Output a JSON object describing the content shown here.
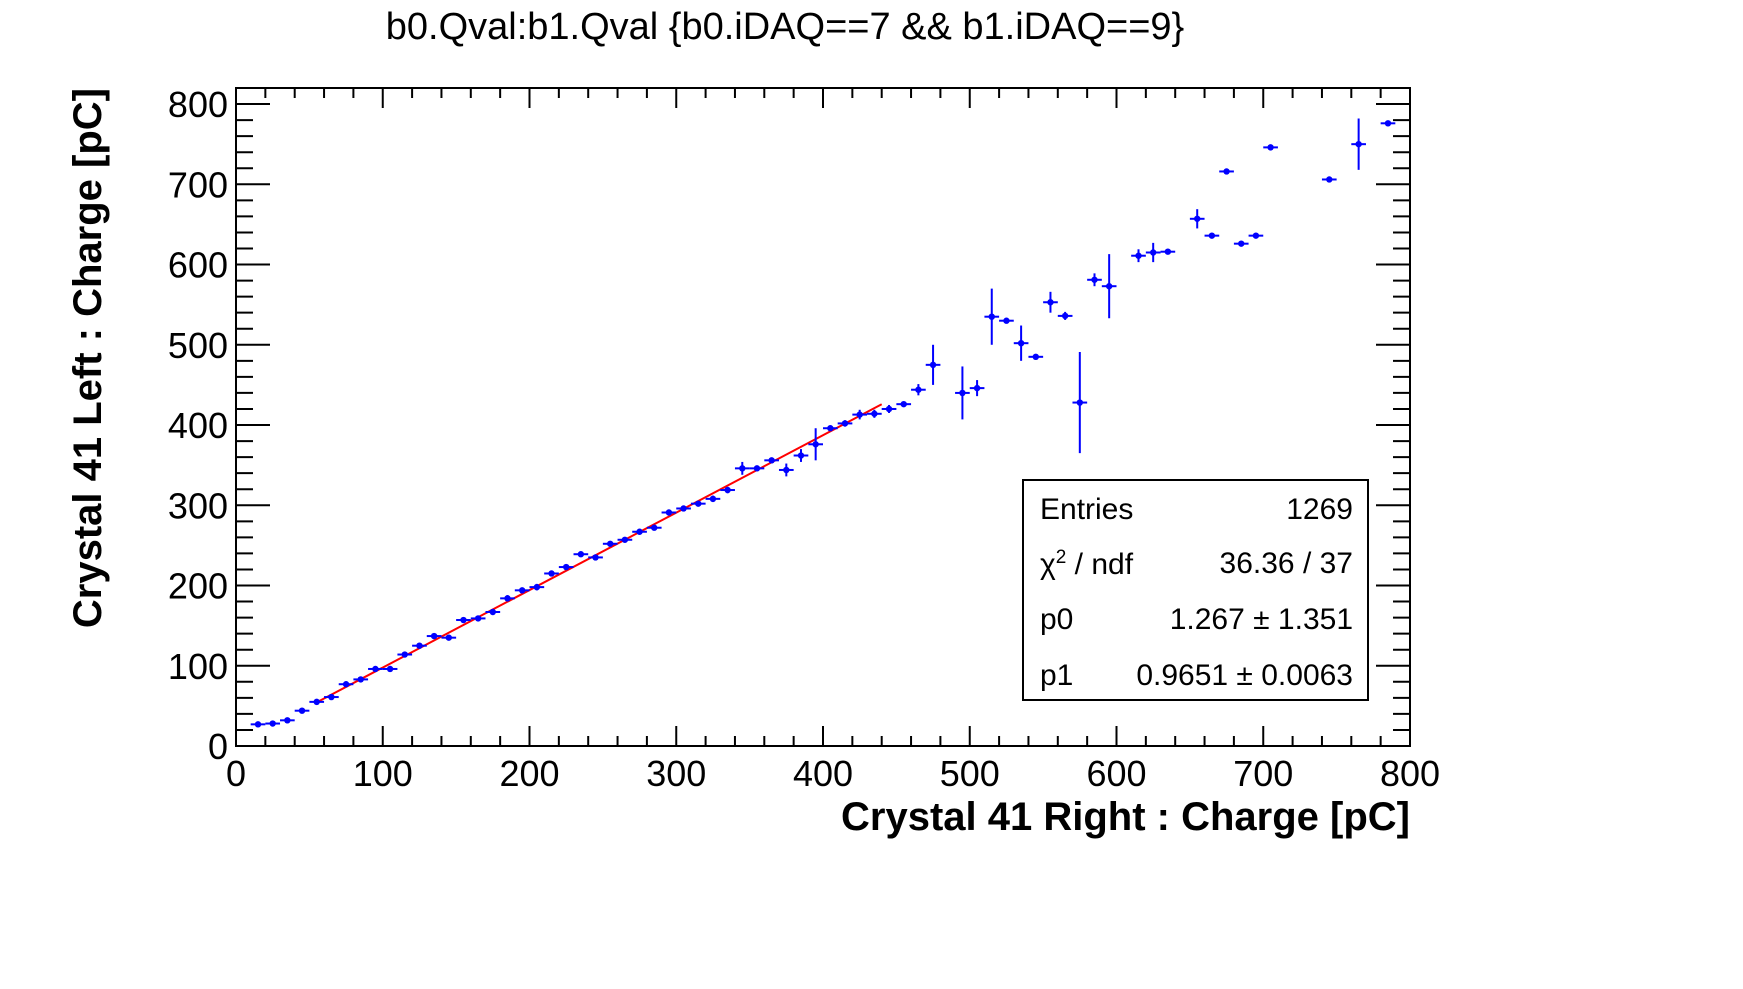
{
  "chart_data": {
    "type": "scatter",
    "title": "b0.Qval:b1.Qval {b0.iDAQ==7 && b1.iDAQ==9}",
    "xlabel": "Crystal 41 Right : Charge [pC]",
    "ylabel": "Crystal 41 Left : Charge [pC]",
    "xlim": [
      0,
      800
    ],
    "ylim": [
      0,
      820
    ],
    "x_ticks": [
      "0",
      "100",
      "200",
      "300",
      "400",
      "500",
      "600",
      "700",
      "800"
    ],
    "y_ticks": [
      "0",
      "100",
      "200",
      "300",
      "400",
      "500",
      "600",
      "700",
      "800"
    ],
    "x_tick_values": [
      0,
      100,
      200,
      300,
      400,
      500,
      600,
      700,
      800
    ],
    "y_tick_values": [
      0,
      100,
      200,
      300,
      400,
      500,
      600,
      700,
      800
    ],
    "grid": false,
    "series": [
      {
        "marker_color": "#0000ff",
        "points": [
          {
            "x": 15,
            "y": 27,
            "ey": 2
          },
          {
            "x": 25,
            "y": 28,
            "ey": 2
          },
          {
            "x": 35,
            "y": 32,
            "ey": 2
          },
          {
            "x": 45,
            "y": 44,
            "ey": 2
          },
          {
            "x": 55,
            "y": 55,
            "ey": 2
          },
          {
            "x": 65,
            "y": 61,
            "ey": 2
          },
          {
            "x": 75,
            "y": 77,
            "ey": 2
          },
          {
            "x": 85,
            "y": 83,
            "ey": 2
          },
          {
            "x": 95,
            "y": 96,
            "ey": 2
          },
          {
            "x": 105,
            "y": 96,
            "ey": 2
          },
          {
            "x": 115,
            "y": 114,
            "ey": 2
          },
          {
            "x": 125,
            "y": 125,
            "ey": 2
          },
          {
            "x": 135,
            "y": 137,
            "ey": 2
          },
          {
            "x": 145,
            "y": 135,
            "ey": 2
          },
          {
            "x": 155,
            "y": 157,
            "ey": 3
          },
          {
            "x": 165,
            "y": 159,
            "ey": 2
          },
          {
            "x": 175,
            "y": 167,
            "ey": 2
          },
          {
            "x": 185,
            "y": 184,
            "ey": 4
          },
          {
            "x": 195,
            "y": 194,
            "ey": 2
          },
          {
            "x": 205,
            "y": 198,
            "ey": 4
          },
          {
            "x": 215,
            "y": 215,
            "ey": 2
          },
          {
            "x": 225,
            "y": 223,
            "ey": 2
          },
          {
            "x": 235,
            "y": 239,
            "ey": 3
          },
          {
            "x": 245,
            "y": 235,
            "ey": 2
          },
          {
            "x": 255,
            "y": 252,
            "ey": 2
          },
          {
            "x": 265,
            "y": 257,
            "ey": 2
          },
          {
            "x": 275,
            "y": 267,
            "ey": 2
          },
          {
            "x": 285,
            "y": 272,
            "ey": 2
          },
          {
            "x": 295,
            "y": 291,
            "ey": 2
          },
          {
            "x": 305,
            "y": 296,
            "ey": 2
          },
          {
            "x": 315,
            "y": 302,
            "ey": 2
          },
          {
            "x": 325,
            "y": 308,
            "ey": 4
          },
          {
            "x": 335,
            "y": 319,
            "ey": 4
          },
          {
            "x": 345,
            "y": 346,
            "ey": 8
          },
          {
            "x": 355,
            "y": 346,
            "ey": 3
          },
          {
            "x": 365,
            "y": 356,
            "ey": 3
          },
          {
            "x": 375,
            "y": 344,
            "ey": 8
          },
          {
            "x": 385,
            "y": 362,
            "ey": 8
          },
          {
            "x": 395,
            "y": 376,
            "ey": 20
          },
          {
            "x": 405,
            "y": 396,
            "ey": 2
          },
          {
            "x": 415,
            "y": 402,
            "ey": 4
          },
          {
            "x": 425,
            "y": 413,
            "ey": 6
          },
          {
            "x": 435,
            "y": 414,
            "ey": 5
          },
          {
            "x": 445,
            "y": 420,
            "ey": 5
          },
          {
            "x": 455,
            "y": 426,
            "ey": 2
          },
          {
            "x": 465,
            "y": 444,
            "ey": 7
          },
          {
            "x": 475,
            "y": 475,
            "ey": 25
          },
          {
            "x": 495,
            "y": 440,
            "ey": 33
          },
          {
            "x": 505,
            "y": 446,
            "ey": 10
          },
          {
            "x": 515,
            "y": 535,
            "ey": 35
          },
          {
            "x": 525,
            "y": 530,
            "ey": 3
          },
          {
            "x": 535,
            "y": 502,
            "ey": 22
          },
          {
            "x": 545,
            "y": 485,
            "ey": 2
          },
          {
            "x": 555,
            "y": 553,
            "ey": 13
          },
          {
            "x": 565,
            "y": 536,
            "ey": 5
          },
          {
            "x": 575,
            "y": 428,
            "ey": 63
          },
          {
            "x": 585,
            "y": 581,
            "ey": 8
          },
          {
            "x": 595,
            "y": 573,
            "ey": 40
          },
          {
            "x": 615,
            "y": 611,
            "ey": 8
          },
          {
            "x": 625,
            "y": 615,
            "ey": 12
          },
          {
            "x": 635,
            "y": 616,
            "ey": 3
          },
          {
            "x": 655,
            "y": 657,
            "ey": 12
          },
          {
            "x": 665,
            "y": 636,
            "ey": 2
          },
          {
            "x": 675,
            "y": 716,
            "ey": 2
          },
          {
            "x": 685,
            "y": 626,
            "ey": 2
          },
          {
            "x": 695,
            "y": 636,
            "ey": 2
          },
          {
            "x": 705,
            "y": 746,
            "ey": 2
          },
          {
            "x": 745,
            "y": 706,
            "ey": 2
          },
          {
            "x": 765,
            "y": 750,
            "ey": 32
          },
          {
            "x": 785,
            "y": 776,
            "ey": 2
          }
        ]
      }
    ],
    "fit": {
      "type": "linear",
      "color": "#ff0000",
      "x_range": [
        55,
        440
      ],
      "p0": 1.267,
      "p1": 0.9651
    }
  },
  "stats": {
    "entries_label": "Entries",
    "entries_value": "1269",
    "chi2_label_chi": "χ",
    "chi2_label_sup": "2",
    "chi2_label_rest": " / ndf",
    "chi2_value": "36.36 / 37",
    "p0_label": "p0",
    "p0_value": "1.267 ± 1.351",
    "p1_label": "p1",
    "p1_value": "0.9651 ± 0.0063"
  }
}
